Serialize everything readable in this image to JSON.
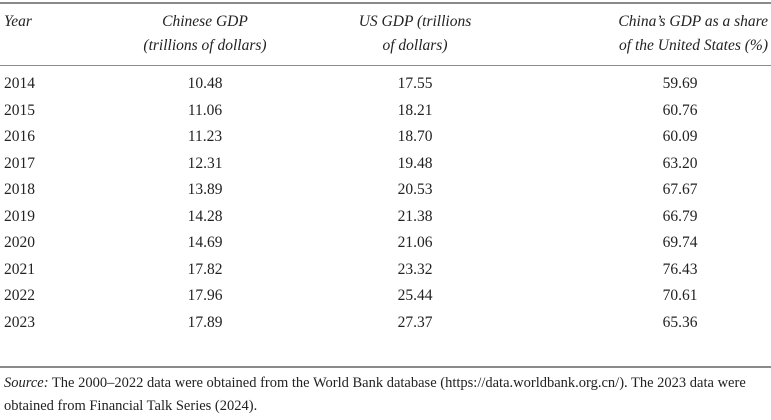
{
  "table": {
    "headers": [
      [
        "Year"
      ],
      [
        "Chinese GDP",
        "(trillions of dollars)"
      ],
      [
        "US GDP (trillions",
        "of dollars)"
      ],
      [
        "China’s GDP as a share",
        "of the United States (%)"
      ]
    ],
    "rows": [
      [
        "2014",
        "10.48",
        "17.55",
        "59.69"
      ],
      [
        "2015",
        "11.06",
        "18.21",
        "60.76"
      ],
      [
        "2016",
        "11.23",
        "18.70",
        "60.09"
      ],
      [
        "2017",
        "12.31",
        "19.48",
        "63.20"
      ],
      [
        "2018",
        "13.89",
        "20.53",
        "67.67"
      ],
      [
        "2019",
        "14.28",
        "21.38",
        "66.79"
      ],
      [
        "2020",
        "14.69",
        "21.06",
        "69.74"
      ],
      [
        "2021",
        "17.82",
        "23.32",
        "76.43"
      ],
      [
        "2022",
        "17.96",
        "25.44",
        "70.61"
      ],
      [
        "2023",
        "17.89",
        "27.37",
        "65.36"
      ]
    ]
  },
  "source": {
    "label": "Source:",
    "text": " The 2000–2022 data were obtained from the World Bank database (https://data.worldbank.org.cn/). The 2023 data were obtained from Financial Talk Series (2024)."
  }
}
